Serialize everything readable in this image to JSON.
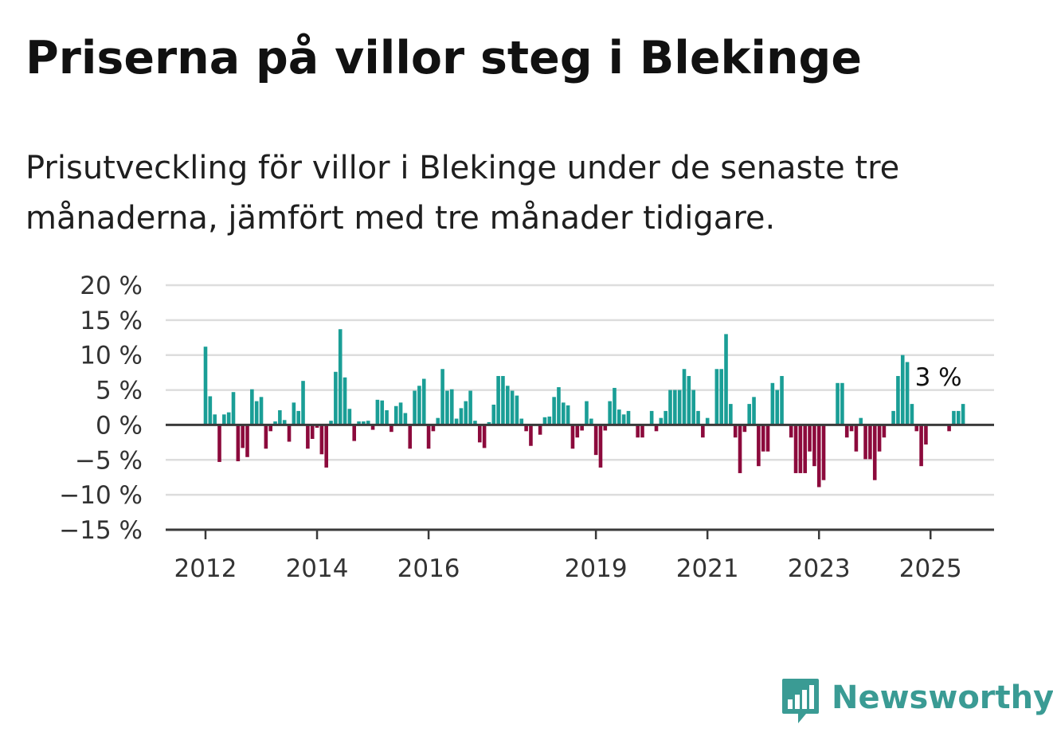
{
  "title": "Priserna på villor steg i Blekinge",
  "subtitle": "Prisutveckling för villor i Blekinge under de senaste tre månaderna, jämfört med tre månader tidigare.",
  "brand": {
    "name": "Newsworthy",
    "icon": "newsworthy-logo-icon"
  },
  "colors": {
    "positive": "#1a9e96",
    "negative": "#8c0a3c",
    "grid": "#dddddd",
    "baseline": "#3a3a3a",
    "brand": "#3a9b94"
  },
  "chart_data": {
    "type": "bar",
    "grid": true,
    "legend": "none",
    "x_start": "2012-01",
    "x_end": "2025-04",
    "ylim": [
      -15,
      20
    ],
    "y_ticks": [
      {
        "value": 20,
        "label": "20 %"
      },
      {
        "value": 15,
        "label": "15 %"
      },
      {
        "value": 10,
        "label": "10 %"
      },
      {
        "value": 5,
        "label": "5 %"
      },
      {
        "value": 0,
        "label": "0 %"
      },
      {
        "value": -5,
        "label": "−5 %"
      },
      {
        "value": -10,
        "label": "−10 %"
      },
      {
        "value": -15,
        "label": "−15 %"
      }
    ],
    "x_ticks": [
      {
        "month": "2012-01",
        "label": "2012"
      },
      {
        "month": "2014-01",
        "label": "2014"
      },
      {
        "month": "2016-01",
        "label": "2016"
      },
      {
        "month": "2019-01",
        "label": "2019"
      },
      {
        "month": "2021-01",
        "label": "2021"
      },
      {
        "month": "2023-01",
        "label": "2023"
      },
      {
        "month": "2025-01",
        "label": "2025"
      }
    ],
    "last_label": "3 %",
    "values": [
      11.2,
      4.1,
      1.5,
      -5.3,
      1.5,
      1.8,
      4.7,
      -5.2,
      -3.3,
      -4.6,
      5.1,
      3.4,
      4.0,
      -3.4,
      -0.9,
      0.5,
      2.1,
      0.7,
      -2.4,
      3.2,
      2.0,
      6.3,
      -3.4,
      -2.0,
      -0.4,
      -4.2,
      -6.1,
      0.6,
      7.6,
      13.7,
      6.8,
      2.3,
      -2.3,
      0.5,
      0.5,
      0.6,
      -0.7,
      3.6,
      3.5,
      2.1,
      -1.0,
      2.7,
      3.2,
      1.7,
      -3.4,
      4.9,
      5.6,
      6.6,
      -3.4,
      -0.9,
      1.0,
      8.0,
      4.9,
      5.1,
      0.9,
      2.4,
      3.4,
      4.9,
      0.6,
      -2.5,
      -3.3,
      0.4,
      2.9,
      7.0,
      7.0,
      5.6,
      4.9,
      4.2,
      0.9,
      -0.9,
      -3.0,
      0,
      -1.4,
      1.1,
      1.2,
      4.0,
      5.4,
      3.2,
      2.8,
      -3.4,
      -1.8,
      -0.8,
      3.4,
      0.9,
      -4.3,
      -6.1,
      -0.8,
      3.4,
      5.3,
      2.2,
      1.5,
      2.0,
      0,
      -1.8,
      -1.8,
      0,
      2.0,
      -0.9,
      1.0,
      2.0,
      5.0,
      5.0,
      5.0,
      8.0,
      7.0,
      5.0,
      2.0,
      -1.8,
      1.0,
      0,
      8.0,
      8.0,
      13.0,
      3.0,
      -1.8,
      -6.9,
      -1.0,
      3.0,
      4.0,
      -5.9,
      -3.8,
      -3.8,
      6.0,
      5.0,
      7.0,
      0,
      -1.8,
      -6.9,
      -6.9,
      -6.9,
      -3.8,
      -5.9,
      -8.9,
      -7.9,
      0,
      0,
      6.0,
      6.0,
      -1.8,
      -0.9,
      -3.8,
      1.0,
      -4.9,
      -4.9,
      -7.9,
      -3.8,
      -1.8,
      0,
      2.0,
      7.0,
      10.0,
      9.0,
      3.0,
      -0.9,
      -5.9,
      -2.8,
      0,
      0,
      0,
      0,
      -0.9,
      2.0,
      2.0,
      3.0
    ]
  }
}
